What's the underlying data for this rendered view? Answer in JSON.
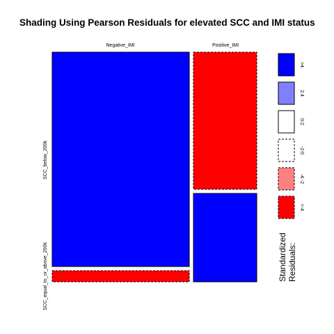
{
  "chart_data": {
    "type": "mosaic",
    "title": "Shading Using Pearson Residuals for elevated SCC and IMI status",
    "column_variable_levels": [
      "Negative_IMI",
      "Positive_IMI"
    ],
    "row_variable_levels": [
      "SCC_below_200k",
      "SCC_equal_to_or_above_200k"
    ],
    "column_proportions": [
      0.667,
      0.333
    ],
    "cells": [
      {
        "column": "Negative_IMI",
        "row": "SCC_below_200k",
        "proportion_within_column": 0.917,
        "residual_sign": "positive",
        "shading": ">4"
      },
      {
        "column": "Negative_IMI",
        "row": "SCC_equal_to_or_above_200k",
        "proportion_within_column": 0.083,
        "residual_sign": "negative",
        "shading": "<-4"
      },
      {
        "column": "Positive_IMI",
        "row": "SCC_below_200k",
        "proportion_within_column": 0.385,
        "residual_sign": "negative",
        "shading": "<-4"
      },
      {
        "column": "Positive_IMI",
        "row": "SCC_equal_to_or_above_200k",
        "proportion_within_column": 0.615,
        "residual_sign": "positive",
        "shading": ">4"
      }
    ],
    "legend": {
      "title_lines": [
        "Standardized",
        "Residuals:"
      ],
      "entries": [
        {
          "label": ">4",
          "color": "#0000ff",
          "dashed": false
        },
        {
          "label": "2:4",
          "color": "#8080ff",
          "dashed": false
        },
        {
          "label": "0:2",
          "color": "#ffffff",
          "dashed": false
        },
        {
          "label": "-2:0",
          "color": "#ffffff",
          "dashed": true
        },
        {
          "label": "-4:-2",
          "color": "#ff8080",
          "dashed": true
        },
        {
          "label": "<-4",
          "color": "#ff0000",
          "dashed": true
        }
      ]
    }
  },
  "colors": {
    "positive_strong": "#0000ff",
    "negative_strong": "#ff0000"
  }
}
